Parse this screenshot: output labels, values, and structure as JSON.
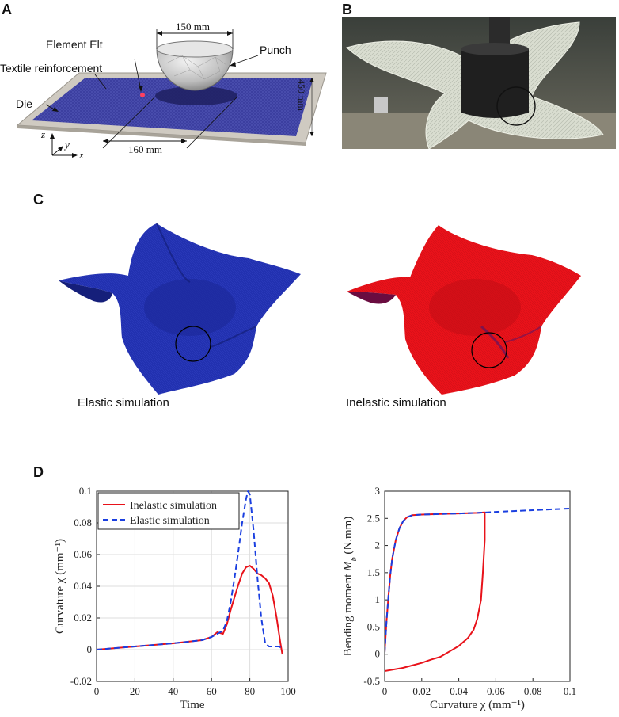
{
  "panel_labels": {
    "a": "A",
    "b": "B",
    "c": "C",
    "d": "D"
  },
  "panel_a": {
    "element_label": "Element Elt",
    "punch_label": "Punch",
    "reinforcement_label": "Textile reinforcement",
    "die_label": "Die",
    "dim_punch": "150 mm",
    "dim_gap": "160 mm",
    "dim_side": "450 mm",
    "axis_z": "z",
    "axis_y": "y",
    "axis_x": "x",
    "colors": {
      "fabric": "#3c3fa0",
      "die": "#c9c4bb",
      "marker": "#ff4060"
    }
  },
  "panel_c": {
    "elastic_caption": "Elastic simulation",
    "inelastic_caption": "Inelastic simulation",
    "colors": {
      "elastic": "#2231b0",
      "inelastic": "#e8121a"
    }
  },
  "chart_data": [
    {
      "type": "line",
      "xlabel": "Time",
      "ylabel": "Curvature χ (mm⁻¹)",
      "xlim": [
        0,
        100
      ],
      "ylim": [
        -0.02,
        0.1
      ],
      "xticks": [
        "0",
        "20",
        "40",
        "60",
        "80",
        "100"
      ],
      "yticks": [
        "-0.02",
        "0",
        "0.02",
        "0.04",
        "0.06",
        "0.08",
        "0.1"
      ],
      "grid": true,
      "legend_position": "top-left",
      "series": [
        {
          "name": "Inelastic simulation",
          "color": "#e8121a",
          "dash": "solid",
          "x": [
            0,
            20,
            40,
            55,
            60,
            63,
            66,
            68,
            70,
            72,
            74,
            76,
            78,
            80,
            82,
            84,
            86,
            88,
            90,
            92,
            94,
            96,
            97
          ],
          "y": [
            0,
            0.002,
            0.004,
            0.006,
            0.008,
            0.011,
            0.01,
            0.016,
            0.025,
            0.033,
            0.041,
            0.048,
            0.052,
            0.053,
            0.051,
            0.048,
            0.047,
            0.045,
            0.042,
            0.034,
            0.02,
            0.004,
            -0.003
          ]
        },
        {
          "name": "Elastic simulation",
          "color": "#1a3fe0",
          "dash": "dashed",
          "x": [
            0,
            20,
            40,
            55,
            60,
            63,
            66,
            68,
            70,
            72,
            74,
            76,
            78,
            79,
            80,
            82,
            84,
            86,
            88,
            90,
            93,
            95,
            97
          ],
          "y": [
            0,
            0.002,
            0.004,
            0.006,
            0.008,
            0.01,
            0.012,
            0.018,
            0.03,
            0.045,
            0.062,
            0.08,
            0.095,
            0.1,
            0.098,
            0.075,
            0.045,
            0.02,
            0.004,
            0.002,
            0.002,
            0.002,
            0.001
          ]
        }
      ]
    },
    {
      "type": "line",
      "xlabel": "Curvature χ (mm⁻¹)",
      "ylabel": "Bending moment M_b (N.mm)",
      "xlim": [
        0,
        0.1
      ],
      "ylim": [
        -0.5,
        3
      ],
      "xticks": [
        "0",
        "0.02",
        "0.04",
        "0.06",
        "0.08",
        "0.1"
      ],
      "yticks": [
        "-0.5",
        "0",
        "0.5",
        "1",
        "1.5",
        "2",
        "2.5",
        "3"
      ],
      "grid": false,
      "series": [
        {
          "name": "",
          "color": "#e8121a",
          "dash": "solid",
          "x": [
            0,
            0.001,
            0.002,
            0.003,
            0.004,
            0.006,
            0.008,
            0.01,
            0.012,
            0.015,
            0.02,
            0.03,
            0.04,
            0.05,
            0.054,
            0.054,
            0.053,
            0.052,
            0.05,
            0.048,
            0.045,
            0.04,
            0.035,
            0.03,
            0.025,
            0.02,
            0.01,
            0
          ],
          "y": [
            0.03,
            0.6,
            1.05,
            1.45,
            1.75,
            2.1,
            2.32,
            2.45,
            2.52,
            2.56,
            2.57,
            2.58,
            2.59,
            2.6,
            2.61,
            2.1,
            1.5,
            1.0,
            0.65,
            0.45,
            0.3,
            0.15,
            0.05,
            -0.05,
            -0.1,
            -0.16,
            -0.25,
            -0.31
          ]
        },
        {
          "name": "",
          "color": "#1a3fe0",
          "dash": "dashed",
          "x": [
            0,
            0.001,
            0.002,
            0.003,
            0.004,
            0.006,
            0.008,
            0.01,
            0.012,
            0.015,
            0.02,
            0.03,
            0.04,
            0.05,
            0.06,
            0.08,
            0.1
          ],
          "y": [
            0.03,
            0.6,
            1.05,
            1.45,
            1.75,
            2.1,
            2.32,
            2.45,
            2.52,
            2.56,
            2.57,
            2.58,
            2.59,
            2.6,
            2.62,
            2.65,
            2.68
          ]
        }
      ]
    }
  ]
}
